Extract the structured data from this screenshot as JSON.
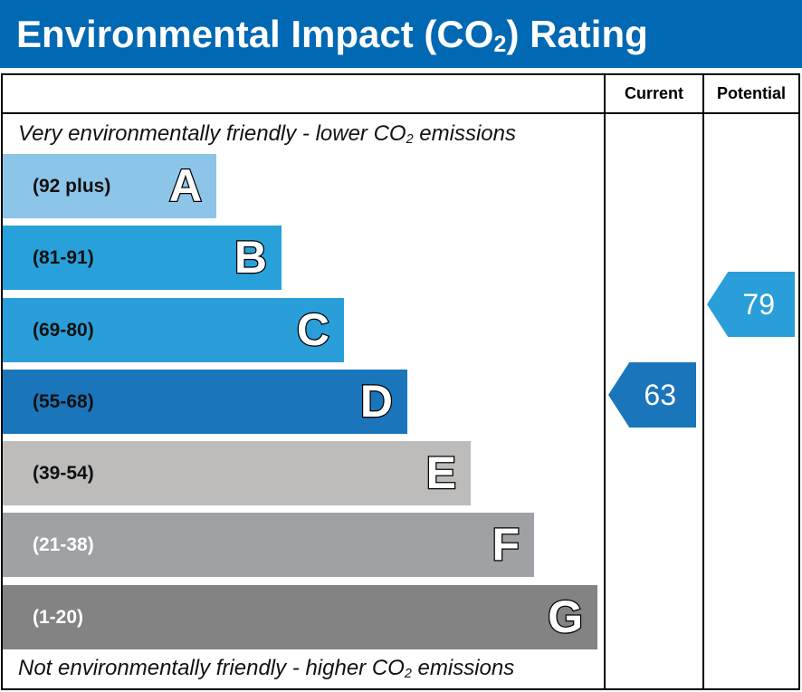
{
  "title": {
    "main": "Environmental Impact (CO",
    "sub": "2",
    "end": ") Rating"
  },
  "columns": {
    "current": "Current",
    "potential": "Potential"
  },
  "top_note": {
    "pre": "Very environmentally friendly - lower CO",
    "sub": "2",
    "post": " emissions"
  },
  "bottom_note": {
    "pre": "Not environmentally friendly - higher CO",
    "sub": "2",
    "post": " emissions"
  },
  "bands": [
    {
      "range": "(92 plus)",
      "letter": "A",
      "color": "#8dc5e9",
      "text_color": "#111"
    },
    {
      "range": "(81-91)",
      "letter": "B",
      "color": "#28a1da",
      "text_color": "#111"
    },
    {
      "range": "(69-80)",
      "letter": "C",
      "color": "#2a9ed8",
      "text_color": "#111"
    },
    {
      "range": "(55-68)",
      "letter": "D",
      "color": "#1b75bb",
      "text_color": "#111"
    },
    {
      "range": "(39-54)",
      "letter": "E",
      "color": "#bdbcbb",
      "text_color": "#111"
    },
    {
      "range": "(21-38)",
      "letter": "F",
      "color": "#a0a1a4",
      "text_color": "#fff"
    },
    {
      "range": "(1-20)",
      "letter": "G",
      "color": "#838383",
      "text_color": "#fff"
    }
  ],
  "current": {
    "value": "63",
    "band": "D",
    "color": "#1b75bb"
  },
  "potential": {
    "value": "79",
    "band": "C",
    "color": "#2a9ed8"
  }
}
